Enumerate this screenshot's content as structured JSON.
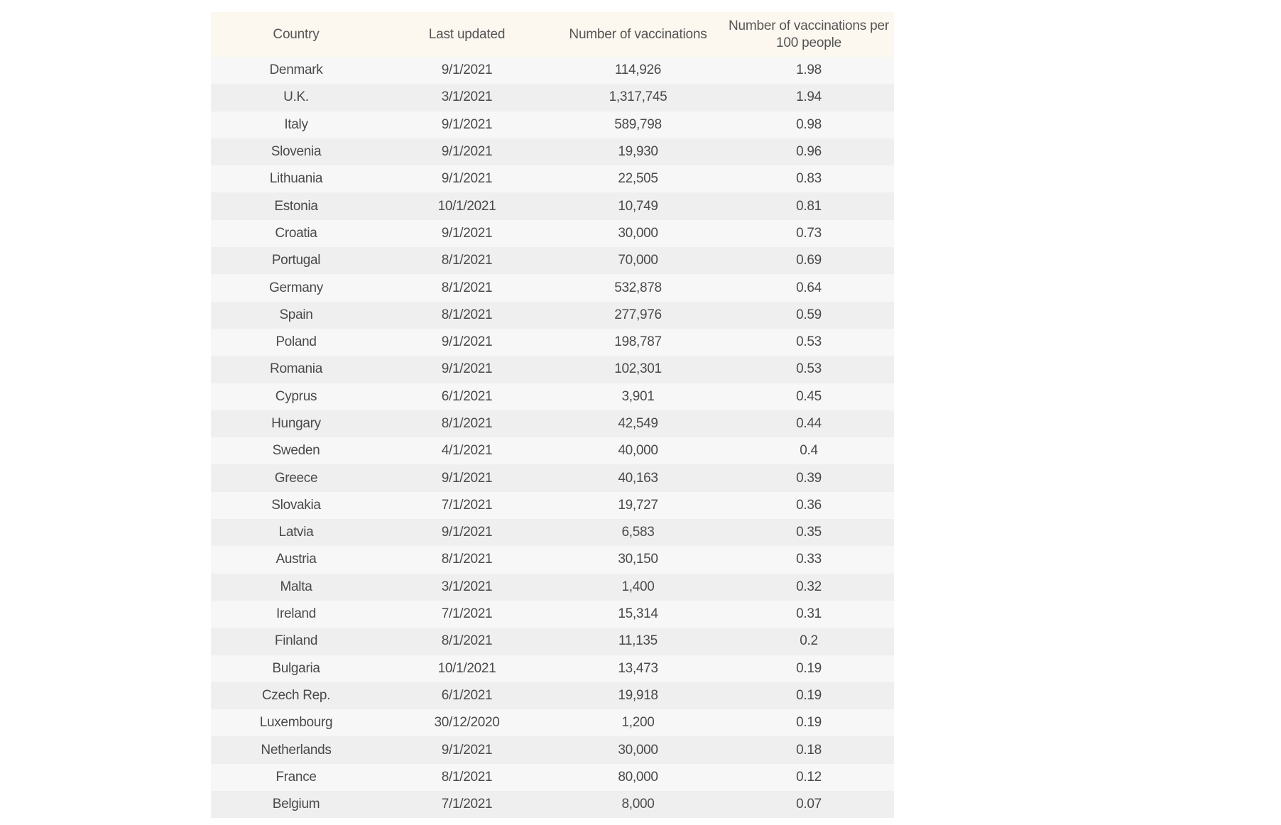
{
  "chart_data": {
    "type": "table",
    "columns": [
      "Country",
      "Last updated",
      "Number of vaccinations",
      "Number of vaccinations per 100 people"
    ],
    "rows": [
      [
        "Denmark",
        "9/1/2021",
        "114,926",
        "1.98"
      ],
      [
        "U.K.",
        "3/1/2021",
        "1,317,745",
        "1.94"
      ],
      [
        "Italy",
        "9/1/2021",
        "589,798",
        "0.98"
      ],
      [
        "Slovenia",
        "9/1/2021",
        "19,930",
        "0.96"
      ],
      [
        "Lithuania",
        "9/1/2021",
        "22,505",
        "0.83"
      ],
      [
        "Estonia",
        "10/1/2021",
        "10,749",
        "0.81"
      ],
      [
        "Croatia",
        "9/1/2021",
        "30,000",
        "0.73"
      ],
      [
        "Portugal",
        "8/1/2021",
        "70,000",
        "0.69"
      ],
      [
        "Germany",
        "8/1/2021",
        "532,878",
        "0.64"
      ],
      [
        "Spain",
        "8/1/2021",
        "277,976",
        "0.59"
      ],
      [
        "Poland",
        "9/1/2021",
        "198,787",
        "0.53"
      ],
      [
        "Romania",
        "9/1/2021",
        "102,301",
        "0.53"
      ],
      [
        "Cyprus",
        "6/1/2021",
        "3,901",
        "0.45"
      ],
      [
        "Hungary",
        "8/1/2021",
        "42,549",
        "0.44"
      ],
      [
        "Sweden",
        "4/1/2021",
        "40,000",
        "0.4"
      ],
      [
        "Greece",
        "9/1/2021",
        "40,163",
        "0.39"
      ],
      [
        "Slovakia",
        "7/1/2021",
        "19,727",
        "0.36"
      ],
      [
        "Latvia",
        "9/1/2021",
        "6,583",
        "0.35"
      ],
      [
        "Austria",
        "8/1/2021",
        "30,150",
        "0.33"
      ],
      [
        "Malta",
        "3/1/2021",
        "1,400",
        "0.32"
      ],
      [
        "Ireland",
        "7/1/2021",
        "15,314",
        "0.31"
      ],
      [
        "Finland",
        "8/1/2021",
        "11,135",
        "0.2"
      ],
      [
        "Bulgaria",
        "10/1/2021",
        "13,473",
        "0.19"
      ],
      [
        "Czech Rep.",
        "6/1/2021",
        "19,918",
        "0.19"
      ],
      [
        "Luxembourg",
        "30/12/2020",
        "1,200",
        "0.19"
      ],
      [
        "Netherlands",
        "9/1/2021",
        "30,000",
        "0.18"
      ],
      [
        "France",
        "8/1/2021",
        "80,000",
        "0.12"
      ],
      [
        "Belgium",
        "7/1/2021",
        "8,000",
        "0.07"
      ]
    ]
  },
  "colors": {
    "header_background": "#fcf7ef",
    "row_odd": "#f7f7f7",
    "row_even": "#efefef",
    "text": "#4a4a4a"
  }
}
